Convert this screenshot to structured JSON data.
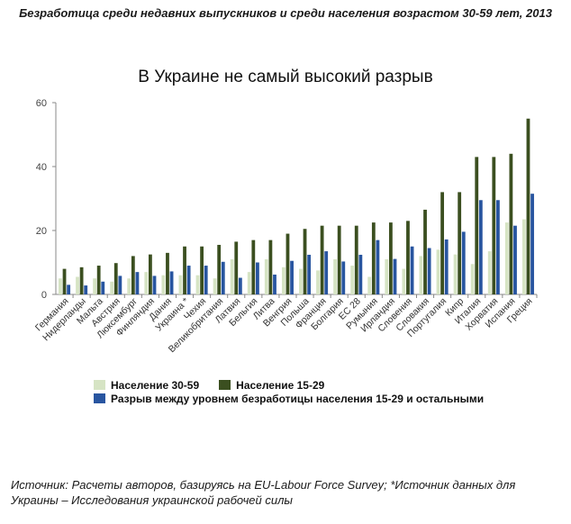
{
  "header": {
    "title": "Безработица среди недавних выпускников и среди населения возрастом 30-59 лет, 2013"
  },
  "chart_data": {
    "type": "bar",
    "title": "В Украине не самый высокий разрыв",
    "ylim": [
      0,
      60
    ],
    "yticks": [
      0,
      20,
      40,
      60
    ],
    "grid": false,
    "legend_position": "bottom",
    "categories": [
      "Германия",
      "Нидерланды",
      "Мальта",
      "Австрия",
      "Люксембург",
      "Финляндия",
      "Дания",
      "Украина *",
      "Чехия",
      "Великобритания",
      "Латвия",
      "Бельгия",
      "Литва",
      "Венгрия",
      "Польша",
      "Франция",
      "Болгария",
      "ЕС 28",
      "Румыния",
      "Ирландия",
      "Словения",
      "Словакия",
      "Португалия",
      "Кипр",
      "Италия",
      "Хорватия",
      "Испания",
      "Греция"
    ],
    "series": [
      {
        "name": "Население 30-59",
        "color": "#d6e4c4",
        "values": [
          5,
          5.5,
          5,
          4,
          5,
          7,
          6,
          6,
          6,
          5,
          11,
          7,
          11,
          8.5,
          8,
          7.5,
          11,
          9,
          5.5,
          11,
          8,
          12,
          14,
          12.5,
          9.5,
          13.5,
          22.5,
          23.5
        ]
      },
      {
        "name": "Население 15-29",
        "color": "#3b4f20",
        "values": [
          8,
          8.5,
          9,
          9.8,
          12,
          12.5,
          13,
          15,
          15,
          15.5,
          16.5,
          17,
          17,
          19,
          20.5,
          21.5,
          21.5,
          21.5,
          22.5,
          22.5,
          23,
          26.5,
          32,
          32,
          43,
          43,
          44,
          55
        ]
      },
      {
        "name": "Разрыв между уровнем безработицы населения 15-29 и остальными",
        "color": "#2855a0",
        "values": [
          3,
          2.8,
          4,
          5.8,
          7,
          5.8,
          7.2,
          9,
          9,
          10.2,
          5.2,
          10,
          6.2,
          10.5,
          12.4,
          13.5,
          10.3,
          12.4,
          17,
          11.1,
          15,
          14.5,
          17.2,
          19.6,
          29.5,
          29.5,
          21.5,
          31.5
        ]
      }
    ]
  },
  "legend": {
    "item1": "Население 30-59",
    "item2": "Население 15-29",
    "item3": "Разрыв между уровнем безработицы населения 15-29 и остальными"
  },
  "footer": {
    "line1": "Источник: Расчеты авторов, базируясь на EU-Labour Force Survey; *Источник данных для",
    "line2": "Украины – Исследования украинской рабочей силы"
  }
}
